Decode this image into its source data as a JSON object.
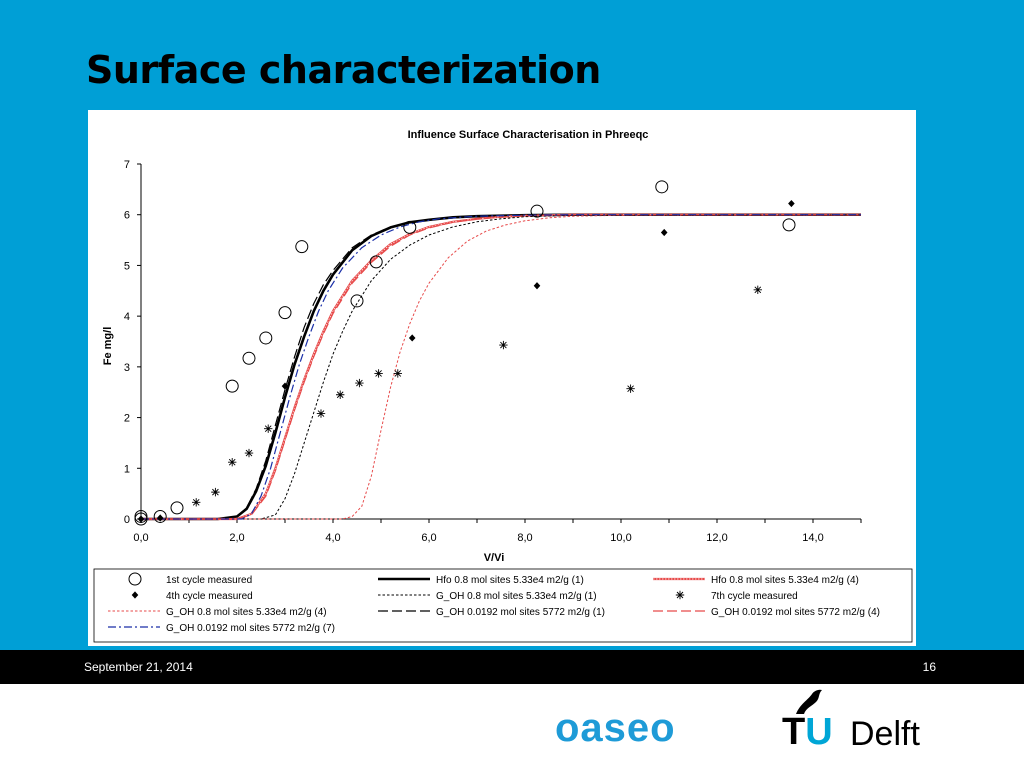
{
  "slide": {
    "title": "Surface characterization",
    "footer_date": "September 21, 2014",
    "page_number": "16",
    "colors": {
      "background": "#009fd6",
      "footer": "#000000"
    }
  },
  "logos": {
    "oaseo": "oaseo",
    "tudelft_tu": "TU",
    "tudelft_delft": "Delft"
  },
  "chart_data": {
    "type": "scatter",
    "title": "Influence Surface Characterisation in Phreeqc",
    "xlabel": "V/Vi",
    "ylabel": "Fe mg/l",
    "xlim": [
      0,
      15
    ],
    "ylim": [
      0,
      7
    ],
    "x_ticks": [
      "0,0",
      "2,0",
      "4,0",
      "6,0",
      "8,0",
      "10,0",
      "12,0",
      "14,0"
    ],
    "x_tick_values": [
      0,
      2,
      4,
      6,
      8,
      10,
      12,
      14
    ],
    "y_ticks": [
      "0",
      "1",
      "2",
      "3",
      "4",
      "5",
      "6",
      "7"
    ],
    "y_tick_values": [
      0,
      1,
      2,
      3,
      4,
      5,
      6,
      7
    ],
    "grid": false,
    "legend_position": "bottom",
    "series": [
      {
        "name": "1st cycle measured",
        "kind": "points",
        "marker": "circle",
        "color": "#000000",
        "points": [
          [
            0.0,
            0.05
          ],
          [
            0.0,
            0.0
          ],
          [
            0.4,
            0.05
          ],
          [
            0.75,
            0.22
          ],
          [
            1.9,
            2.62
          ],
          [
            2.25,
            3.17
          ],
          [
            2.6,
            3.57
          ],
          [
            3.0,
            4.07
          ],
          [
            3.35,
            5.37
          ],
          [
            4.5,
            4.3
          ],
          [
            4.9,
            5.07
          ],
          [
            5.6,
            5.75
          ],
          [
            8.25,
            6.07
          ],
          [
            10.85,
            6.55
          ],
          [
            13.5,
            5.8
          ]
        ]
      },
      {
        "name": "4th cycle measured",
        "kind": "points",
        "marker": "diamond",
        "color": "#000000",
        "points": [
          [
            0.0,
            0.0
          ],
          [
            0.4,
            0.02
          ],
          [
            3.0,
            2.62
          ],
          [
            5.65,
            3.57
          ],
          [
            8.25,
            4.6
          ],
          [
            10.9,
            5.65
          ],
          [
            13.55,
            6.22
          ]
        ]
      },
      {
        "name": "7th cycle measured",
        "kind": "points",
        "marker": "star",
        "color": "#000000",
        "points": [
          [
            1.15,
            0.33
          ],
          [
            1.55,
            0.53
          ],
          [
            1.9,
            1.12
          ],
          [
            2.25,
            1.3
          ],
          [
            2.65,
            1.78
          ],
          [
            3.75,
            2.08
          ],
          [
            4.15,
            2.45
          ],
          [
            4.55,
            2.68
          ],
          [
            4.95,
            2.87
          ],
          [
            5.35,
            2.87
          ],
          [
            7.55,
            3.43
          ],
          [
            10.2,
            2.57
          ],
          [
            12.85,
            4.52
          ]
        ]
      },
      {
        "name": "Hfo 0.8 mol sites 5.33e4 m2/g (1)",
        "kind": "curve",
        "color": "#000000",
        "style": "solid-thick",
        "points": [
          [
            0.0,
            0.0
          ],
          [
            1.6,
            0.0
          ],
          [
            2.0,
            0.05
          ],
          [
            2.2,
            0.2
          ],
          [
            2.4,
            0.55
          ],
          [
            2.6,
            1.05
          ],
          [
            2.8,
            1.7
          ],
          [
            3.0,
            2.4
          ],
          [
            3.2,
            3.05
          ],
          [
            3.4,
            3.6
          ],
          [
            3.6,
            4.1
          ],
          [
            3.8,
            4.5
          ],
          [
            4.0,
            4.82
          ],
          [
            4.4,
            5.3
          ],
          [
            4.8,
            5.58
          ],
          [
            5.2,
            5.75
          ],
          [
            5.6,
            5.85
          ],
          [
            6.0,
            5.9
          ],
          [
            6.5,
            5.95
          ],
          [
            7.0,
            5.97
          ],
          [
            8.0,
            5.99
          ],
          [
            9.0,
            6.0
          ],
          [
            15.0,
            6.0
          ]
        ]
      },
      {
        "name": "Hfo 0.8 mol sites 5.33e4 m2/g (4)",
        "kind": "curve",
        "color": "#e74a4a",
        "style": "solid-double",
        "points": [
          [
            0.0,
            0.0
          ],
          [
            2.0,
            0.0
          ],
          [
            2.3,
            0.1
          ],
          [
            2.6,
            0.5
          ],
          [
            2.8,
            1.0
          ],
          [
            3.0,
            1.6
          ],
          [
            3.2,
            2.2
          ],
          [
            3.4,
            2.75
          ],
          [
            3.6,
            3.25
          ],
          [
            3.8,
            3.7
          ],
          [
            4.0,
            4.1
          ],
          [
            4.4,
            4.7
          ],
          [
            4.8,
            5.1
          ],
          [
            5.2,
            5.42
          ],
          [
            5.6,
            5.62
          ],
          [
            6.0,
            5.76
          ],
          [
            6.5,
            5.86
          ],
          [
            7.0,
            5.92
          ],
          [
            7.5,
            5.96
          ],
          [
            8.0,
            5.98
          ],
          [
            9.0,
            6.0
          ],
          [
            15.0,
            6.0
          ]
        ]
      },
      {
        "name": "G_OH 0.8 mol sites 5.33e4 m2/g (1)",
        "kind": "curve",
        "color": "#000000",
        "style": "dotted",
        "points": [
          [
            0.0,
            0.0
          ],
          [
            2.5,
            0.0
          ],
          [
            2.8,
            0.08
          ],
          [
            3.0,
            0.4
          ],
          [
            3.2,
            0.9
          ],
          [
            3.4,
            1.5
          ],
          [
            3.6,
            2.1
          ],
          [
            3.8,
            2.7
          ],
          [
            4.0,
            3.25
          ],
          [
            4.2,
            3.7
          ],
          [
            4.4,
            4.1
          ],
          [
            4.8,
            4.7
          ],
          [
            5.2,
            5.12
          ],
          [
            5.6,
            5.4
          ],
          [
            6.0,
            5.6
          ],
          [
            6.5,
            5.76
          ],
          [
            7.0,
            5.86
          ],
          [
            7.5,
            5.92
          ],
          [
            8.0,
            5.96
          ],
          [
            9.0,
            5.99
          ],
          [
            15.0,
            6.0
          ]
        ]
      },
      {
        "name": "G_OH 0.8 mol sites 5.33e4 m2/g (4)",
        "kind": "curve",
        "color": "#e74a4a",
        "style": "dotted",
        "points": [
          [
            0.0,
            0.0
          ],
          [
            4.2,
            0.0
          ],
          [
            4.4,
            0.05
          ],
          [
            4.6,
            0.25
          ],
          [
            4.8,
            0.85
          ],
          [
            5.0,
            1.75
          ],
          [
            5.2,
            2.6
          ],
          [
            5.4,
            3.3
          ],
          [
            5.6,
            3.85
          ],
          [
            5.8,
            4.3
          ],
          [
            6.0,
            4.65
          ],
          [
            6.4,
            5.15
          ],
          [
            6.8,
            5.48
          ],
          [
            7.2,
            5.68
          ],
          [
            7.6,
            5.8
          ],
          [
            8.0,
            5.88
          ],
          [
            8.5,
            5.94
          ],
          [
            9.0,
            5.97
          ],
          [
            10.0,
            5.99
          ],
          [
            15.0,
            6.0
          ]
        ]
      },
      {
        "name": "G_OH 0.0192 mol sites 5772 m2/g (1)",
        "kind": "curve",
        "color": "#000000",
        "style": "longdash",
        "points": [
          [
            0.0,
            0.0
          ],
          [
            1.6,
            0.0
          ],
          [
            2.0,
            0.05
          ],
          [
            2.2,
            0.22
          ],
          [
            2.4,
            0.6
          ],
          [
            2.6,
            1.15
          ],
          [
            2.8,
            1.85
          ],
          [
            3.0,
            2.55
          ],
          [
            3.2,
            3.2
          ],
          [
            3.4,
            3.78
          ],
          [
            3.6,
            4.25
          ],
          [
            3.8,
            4.62
          ],
          [
            4.0,
            4.9
          ],
          [
            4.4,
            5.35
          ],
          [
            4.8,
            5.6
          ],
          [
            5.2,
            5.76
          ],
          [
            5.6,
            5.85
          ],
          [
            6.0,
            5.9
          ],
          [
            7.0,
            5.97
          ],
          [
            8.0,
            5.99
          ],
          [
            15.0,
            6.0
          ]
        ]
      },
      {
        "name": "G_OH 0.0192 mol sites 5772 m2/g (4)",
        "kind": "curve",
        "color": "#e74a4a",
        "style": "longdash",
        "points": [
          [
            0.0,
            0.0
          ],
          [
            2.0,
            0.0
          ],
          [
            2.3,
            0.08
          ],
          [
            2.6,
            0.45
          ],
          [
            2.8,
            0.95
          ],
          [
            3.0,
            1.55
          ],
          [
            3.2,
            2.15
          ],
          [
            3.4,
            2.7
          ],
          [
            3.6,
            3.2
          ],
          [
            3.8,
            3.65
          ],
          [
            4.0,
            4.05
          ],
          [
            4.4,
            4.65
          ],
          [
            4.8,
            5.06
          ],
          [
            5.2,
            5.38
          ],
          [
            5.6,
            5.6
          ],
          [
            6.0,
            5.74
          ],
          [
            6.5,
            5.85
          ],
          [
            7.0,
            5.92
          ],
          [
            8.0,
            5.98
          ],
          [
            9.0,
            6.0
          ],
          [
            15.0,
            6.0
          ]
        ]
      },
      {
        "name": "G_OH 0.0192 mol sites 5772 m2/g (7)",
        "kind": "curve",
        "color": "#1a2fa8",
        "style": "dashdot",
        "points": [
          [
            0.0,
            0.0
          ],
          [
            2.1,
            0.0
          ],
          [
            2.3,
            0.1
          ],
          [
            2.5,
            0.45
          ],
          [
            2.7,
            1.0
          ],
          [
            2.9,
            1.7
          ],
          [
            3.1,
            2.4
          ],
          [
            3.3,
            3.05
          ],
          [
            3.5,
            3.6
          ],
          [
            3.7,
            4.1
          ],
          [
            3.9,
            4.5
          ],
          [
            4.2,
            4.95
          ],
          [
            4.6,
            5.35
          ],
          [
            5.0,
            5.6
          ],
          [
            5.4,
            5.76
          ],
          [
            5.8,
            5.86
          ],
          [
            6.2,
            5.92
          ],
          [
            7.0,
            5.97
          ],
          [
            8.0,
            5.99
          ],
          [
            9.0,
            6.0
          ],
          [
            15.0,
            6.0
          ]
        ]
      }
    ]
  }
}
